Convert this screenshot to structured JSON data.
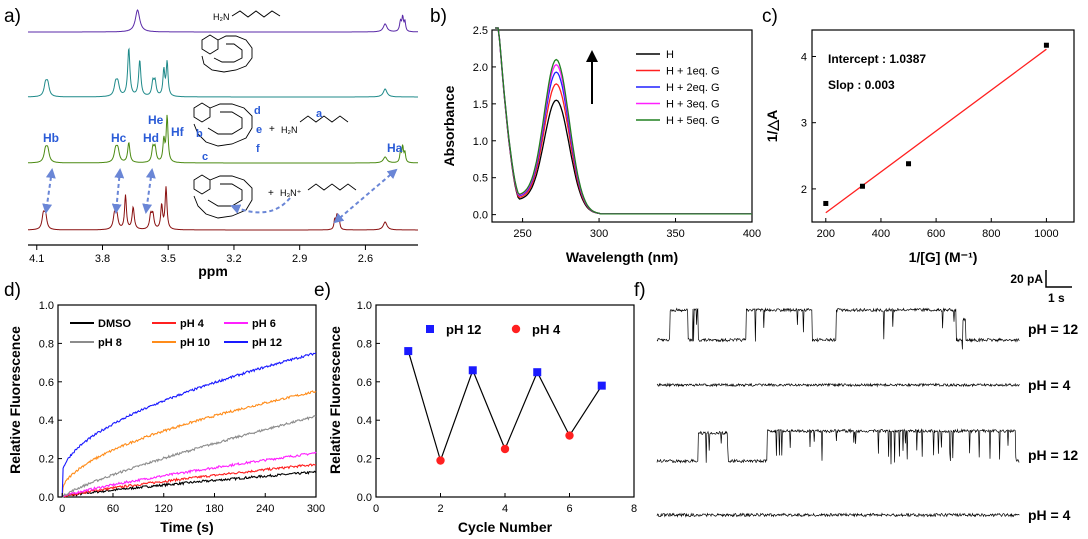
{
  "panels": {
    "a": "a)",
    "b": "b)",
    "c": "c)",
    "d": "d)",
    "e": "e)",
    "f": "f)"
  },
  "panel_a": {
    "xlabel": "ppm",
    "ticks": [
      "4.1",
      "3.8",
      "3.5",
      "3.2",
      "2.9",
      "2.6"
    ],
    "molecule_label": "H₂N",
    "labels": {
      "hb": "Hb",
      "hc": "Hc",
      "hd": "Hd",
      "he": "He",
      "hf": "Hf",
      "ha": "Ha",
      "a": "a",
      "b": "b",
      "c": "c",
      "d": "d",
      "e": "e",
      "f": "f"
    },
    "colors": [
      "#5a2aa8",
      "#1f8a8a",
      "#4b8a12",
      "#8a1010"
    ]
  },
  "chart_data": [
    {
      "type": "line",
      "panel": "b",
      "xlabel": "Wavelength (nm)",
      "ylabel": "Absorbance",
      "xlim": [
        230,
        400
      ],
      "ylim": [
        -0.1,
        2.5
      ],
      "xticks": [
        250,
        300,
        350,
        400
      ],
      "yticks": [
        0.0,
        0.5,
        1.0,
        1.5,
        2.0,
        2.5
      ],
      "peak_wavelength": 272,
      "series": [
        {
          "name": "H",
          "color": "#000000",
          "peak": 1.55,
          "trough": 0.2
        },
        {
          "name": "H + 1eq. G",
          "color": "#ff2020",
          "peak": 1.77,
          "trough": 0.22
        },
        {
          "name": "H + 2eq. G",
          "color": "#2020ff",
          "peak": 1.93,
          "trough": 0.24
        },
        {
          "name": "H + 3eq. G",
          "color": "#ff20ff",
          "peak": 2.03,
          "trough": 0.25
        },
        {
          "name": "H + 5eq. G",
          "color": "#208020",
          "peak": 2.1,
          "trough": 0.26
        }
      ],
      "legend": "top-right"
    },
    {
      "type": "scatter",
      "panel": "c",
      "xlabel": "1/[G] (M⁻¹)",
      "ylabel": "1/△A",
      "xlim": [
        150,
        1100
      ],
      "ylim": [
        1.5,
        4.4
      ],
      "xticks": [
        200,
        400,
        600,
        800,
        1000
      ],
      "yticks": [
        2,
        3,
        4
      ],
      "points": [
        [
          200,
          1.78
        ],
        [
          333,
          2.04
        ],
        [
          500,
          2.38
        ],
        [
          1000,
          4.17
        ]
      ],
      "fit": {
        "x": [
          200,
          1000
        ],
        "y": [
          1.64,
          4.11
        ],
        "color": "#ff2020"
      },
      "annotations": [
        "Intercept : 1.0387",
        "Slop : 0.003"
      ]
    },
    {
      "type": "line",
      "panel": "d",
      "xlabel": "Time (s)",
      "ylabel": "Relative Fluorescence",
      "xlim": [
        -5,
        300
      ],
      "ylim": [
        0,
        1.0
      ],
      "xticks": [
        0,
        60,
        120,
        180,
        240,
        300
      ],
      "yticks": [
        0.0,
        0.2,
        0.4,
        0.6,
        0.8,
        1.0
      ],
      "series": [
        {
          "name": "DMSO",
          "color": "#000000",
          "final": 0.13
        },
        {
          "name": "pH 4",
          "color": "#ff2020",
          "final": 0.17
        },
        {
          "name": "pH 6",
          "color": "#ff20ff",
          "final": 0.23
        },
        {
          "name": "pH 8",
          "color": "#8c8c8c",
          "final": 0.42
        },
        {
          "name": "pH 10",
          "color": "#ff8c1a",
          "final": 0.55
        },
        {
          "name": "pH 12",
          "color": "#1a1aff",
          "final": 0.75
        }
      ],
      "legend": "top-left"
    },
    {
      "type": "scatter",
      "panel": "e",
      "xlabel": "Cycle Number",
      "ylabel": "Relative Fluorescence",
      "xlim": [
        0,
        8
      ],
      "ylim": [
        0,
        1.0
      ],
      "xticks": [
        0,
        2,
        4,
        6,
        8
      ],
      "yticks": [
        0.0,
        0.2,
        0.4,
        0.6,
        0.8,
        1.0
      ],
      "series": [
        {
          "name": "pH 12",
          "color": "#1a1aff",
          "marker": "square",
          "x": [
            1,
            3,
            5,
            7
          ],
          "y": [
            0.76,
            0.66,
            0.65,
            0.58
          ]
        },
        {
          "name": "pH  4",
          "color": "#ff2020",
          "marker": "circle",
          "x": [
            2,
            4,
            6
          ],
          "y": [
            0.19,
            0.25,
            0.32
          ]
        }
      ],
      "connect_order": [
        [
          1,
          0.76
        ],
        [
          2,
          0.19
        ],
        [
          3,
          0.66
        ],
        [
          4,
          0.25
        ],
        [
          5,
          0.65
        ],
        [
          6,
          0.32
        ],
        [
          7,
          0.58
        ]
      ]
    }
  ],
  "panel_f": {
    "scale_current": "20 pA",
    "scale_time": "1 s",
    "trace_labels": [
      "pH = 12",
      "pH = 4",
      "pH = 12",
      "pH = 4"
    ]
  }
}
